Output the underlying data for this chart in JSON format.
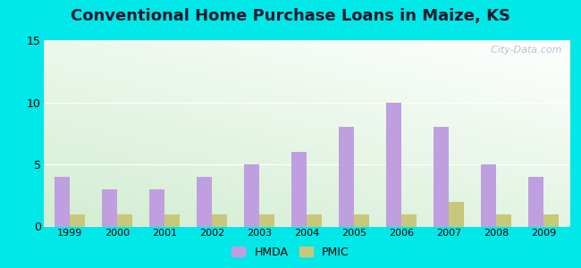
{
  "title": "Conventional Home Purchase Loans in Maize, KS",
  "years": [
    1999,
    2000,
    2001,
    2002,
    2003,
    2004,
    2005,
    2006,
    2007,
    2008,
    2009
  ],
  "hmda": [
    4,
    3,
    3,
    4,
    5,
    6,
    8,
    10,
    8,
    5,
    4
  ],
  "pmic": [
    1,
    1,
    1,
    1,
    1,
    1,
    1,
    1,
    2,
    1,
    1
  ],
  "hmda_color": "#bf9fdf",
  "pmic_color": "#c8c87a",
  "bg_outer": "#00e8e8",
  "ylim": [
    0,
    15
  ],
  "yticks": [
    0,
    5,
    10,
    15
  ],
  "bar_width": 0.32,
  "title_fontsize": 13,
  "watermark": "  City-Data.com"
}
